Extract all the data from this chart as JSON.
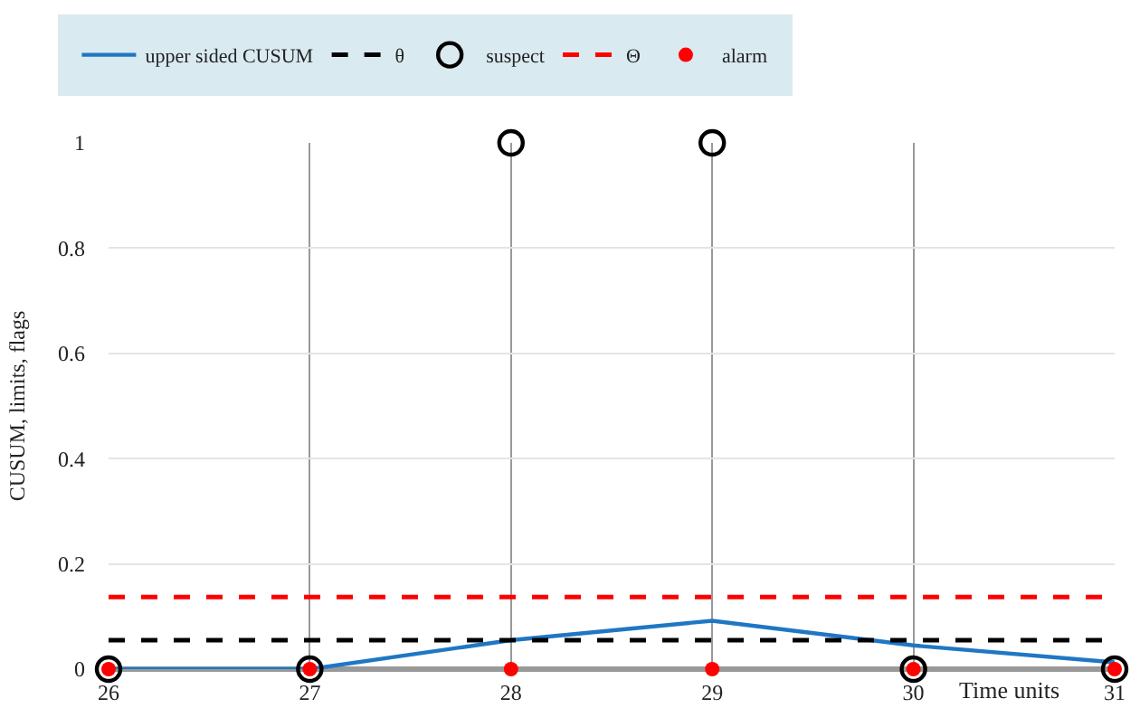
{
  "chart_data": {
    "type": "line",
    "xlabel": "Time units",
    "ylabel": "CUSUM, limits, flags",
    "x": [
      26,
      27,
      28,
      29,
      30,
      31
    ],
    "series": [
      {
        "name": "upper sided CUSUM",
        "color": "#1f77c4",
        "values": [
          0,
          0,
          0.055,
          0.092,
          0.045,
          0.013
        ],
        "line_style": "solid",
        "marker": "none"
      },
      {
        "name": "suspect",
        "type": "scatter",
        "color": "#000000",
        "values": [
          0,
          0,
          1,
          1,
          0,
          0
        ],
        "marker": "circle"
      },
      {
        "name": "alarm",
        "type": "scatter",
        "color": "#ff0000",
        "values": [
          0,
          0,
          0,
          0,
          0,
          0
        ],
        "marker": "circle"
      }
    ],
    "xlim": [
      26,
      31
    ],
    "xticks": [
      26,
      27,
      28,
      29,
      30,
      31
    ],
    "ylim": [
      0,
      1
    ],
    "yticks": [
      0,
      0.2,
      0.4,
      0.6,
      0.8,
      1
    ],
    "ref_lines": [
      {
        "axis": "y",
        "value": 0.055,
        "label": "θ",
        "color": "#000000",
        "line_style": "dashed"
      },
      {
        "axis": "y",
        "value": 0.137,
        "label": "Θ",
        "color": "#ff0000",
        "line_style": "dashed"
      }
    ],
    "grid": true,
    "legend": "top"
  }
}
